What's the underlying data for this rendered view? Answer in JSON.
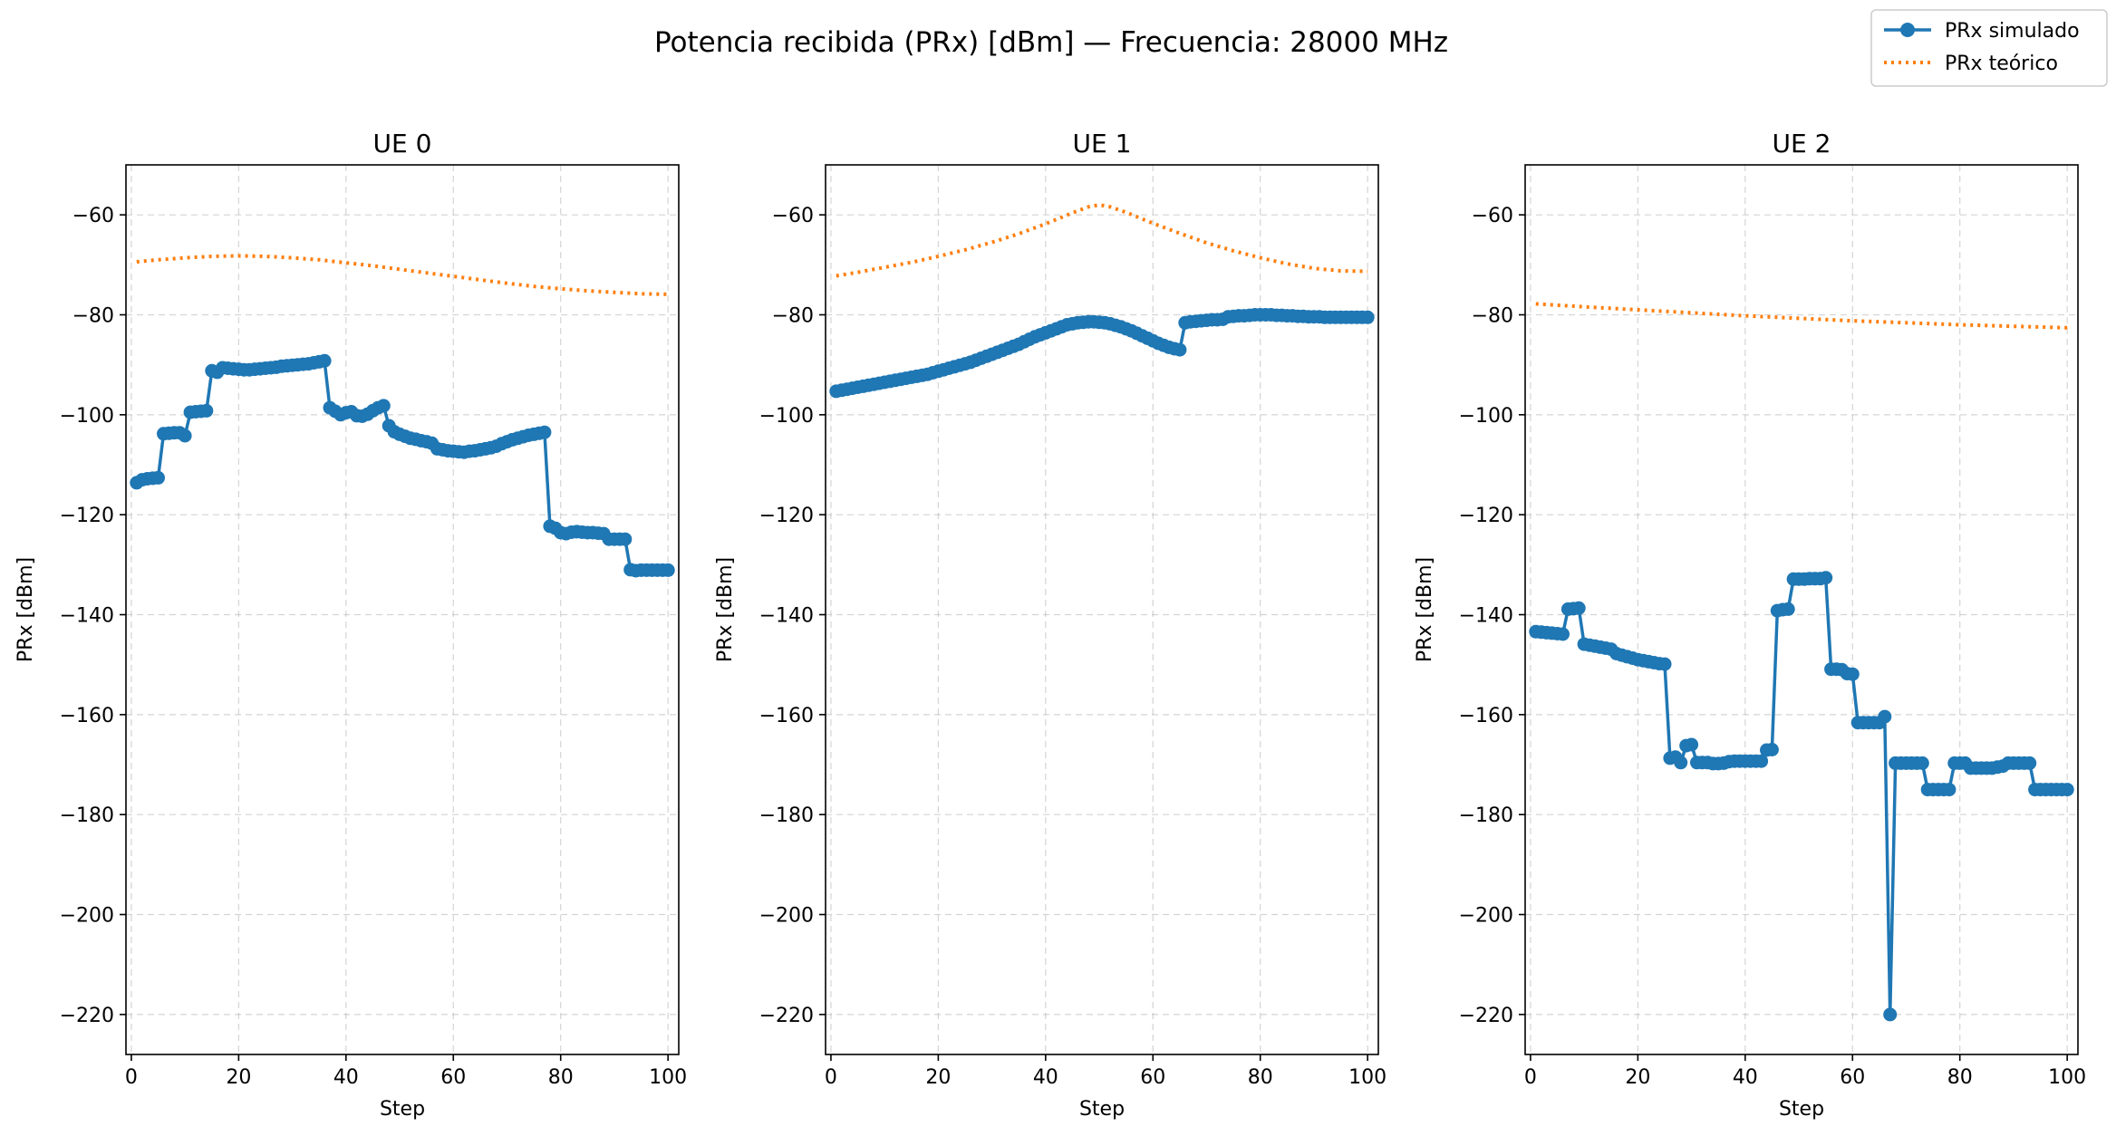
{
  "figure": {
    "suptitle": "Potencia recibida (PRx) [dBm] — Frecuencia: 28000 MHz"
  },
  "legend": {
    "placement": "top-right",
    "entries": [
      {
        "label": "PRx simulado",
        "color": "#1f77b4",
        "style": "solid-marker"
      },
      {
        "label": "PRx teórico",
        "color": "#ff7f0e",
        "style": "dotted"
      }
    ]
  },
  "chart_data": [
    {
      "type": "line",
      "title": "UE 0",
      "xlabel": "Step",
      "ylabel": "PRx [dBm]",
      "xlim": [
        -1,
        102
      ],
      "ylim": [
        -228,
        -50
      ],
      "xticks": [
        0,
        20,
        40,
        60,
        80,
        100
      ],
      "yticks": [
        -60,
        -80,
        -100,
        -120,
        -140,
        -160,
        -180,
        -200,
        -220
      ],
      "grid": true,
      "series": [
        {
          "name": "PRx simulado",
          "color": "#1f77b4",
          "style": "solid-marker",
          "x": [
            1,
            2,
            3,
            4,
            5,
            6,
            7,
            8,
            9,
            10,
            11,
            12,
            13,
            14,
            15,
            16,
            17,
            18,
            19,
            20,
            21,
            22,
            23,
            24,
            25,
            26,
            27,
            28,
            29,
            30,
            31,
            32,
            33,
            34,
            35,
            36,
            37,
            38,
            39,
            40,
            41,
            42,
            43,
            44,
            45,
            46,
            47,
            48,
            49,
            50,
            51,
            52,
            53,
            54,
            55,
            56,
            57,
            58,
            59,
            60,
            61,
            62,
            63,
            64,
            65,
            66,
            67,
            68,
            69,
            70,
            71,
            72,
            73,
            74,
            75,
            76,
            77,
            78,
            79,
            80,
            81,
            82,
            83,
            84,
            85,
            86,
            87,
            88,
            89,
            90,
            91,
            92,
            93,
            94,
            95,
            96,
            97,
            98,
            99,
            100
          ],
          "y": [
            -113.6,
            -113.0,
            -112.8,
            -112.7,
            -112.6,
            -103.8,
            -103.7,
            -103.6,
            -103.6,
            -104.2,
            -99.5,
            -99.4,
            -99.3,
            -99.2,
            -91.2,
            -91.5,
            -90.6,
            -90.7,
            -90.8,
            -90.9,
            -91.0,
            -91.0,
            -90.9,
            -90.8,
            -90.7,
            -90.6,
            -90.5,
            -90.3,
            -90.2,
            -90.1,
            -90.0,
            -89.9,
            -89.8,
            -89.6,
            -89.4,
            -89.2,
            -98.6,
            -99.3,
            -100.0,
            -99.6,
            -99.4,
            -100.2,
            -100.3,
            -99.9,
            -99.2,
            -98.6,
            -98.2,
            -102.2,
            -103.4,
            -103.9,
            -104.3,
            -104.7,
            -104.9,
            -105.2,
            -105.4,
            -105.7,
            -106.8,
            -107.0,
            -107.2,
            -107.3,
            -107.4,
            -107.5,
            -107.3,
            -107.2,
            -107.0,
            -106.8,
            -106.6,
            -106.3,
            -105.8,
            -105.4,
            -105.0,
            -104.7,
            -104.4,
            -104.1,
            -103.9,
            -103.7,
            -103.5,
            -122.3,
            -122.7,
            -123.6,
            -123.8,
            -123.5,
            -123.4,
            -123.5,
            -123.6,
            -123.6,
            -123.7,
            -123.8,
            -124.9,
            -124.9,
            -124.9,
            -124.9,
            -131.0,
            -131.2,
            -131.1,
            -131.1,
            -131.1,
            -131.1,
            -131.1,
            -131.1
          ]
        },
        {
          "name": "PRx teórico",
          "color": "#ff7f0e",
          "style": "dotted",
          "x": [
            1,
            5,
            10,
            15,
            20,
            25,
            30,
            35,
            40,
            45,
            50,
            55,
            60,
            65,
            70,
            75,
            80,
            85,
            90,
            95,
            100
          ],
          "y": [
            -69.4,
            -69.0,
            -68.6,
            -68.3,
            -68.2,
            -68.3,
            -68.6,
            -69.0,
            -69.6,
            -70.2,
            -70.9,
            -71.6,
            -72.3,
            -73.0,
            -73.7,
            -74.3,
            -74.8,
            -75.2,
            -75.5,
            -75.8,
            -75.9
          ]
        }
      ]
    },
    {
      "type": "line",
      "title": "UE 1",
      "xlabel": "Step",
      "ylabel": "PRx [dBm]",
      "xlim": [
        -1,
        102
      ],
      "ylim": [
        -228,
        -50
      ],
      "xticks": [
        0,
        20,
        40,
        60,
        80,
        100
      ],
      "yticks": [
        -60,
        -80,
        -100,
        -120,
        -140,
        -160,
        -180,
        -200,
        -220
      ],
      "grid": true,
      "series": [
        {
          "name": "PRx simulado",
          "color": "#1f77b4",
          "style": "solid-marker",
          "x": [
            1,
            2,
            3,
            4,
            5,
            6,
            7,
            8,
            9,
            10,
            11,
            12,
            13,
            14,
            15,
            16,
            17,
            18,
            19,
            20,
            21,
            22,
            23,
            24,
            25,
            26,
            27,
            28,
            29,
            30,
            31,
            32,
            33,
            34,
            35,
            36,
            37,
            38,
            39,
            40,
            41,
            42,
            43,
            44,
            45,
            46,
            47,
            48,
            49,
            50,
            51,
            52,
            53,
            54,
            55,
            56,
            57,
            58,
            59,
            60,
            61,
            62,
            63,
            64,
            65,
            66,
            67,
            68,
            69,
            70,
            71,
            72,
            73,
            74,
            75,
            76,
            77,
            78,
            79,
            80,
            81,
            82,
            83,
            84,
            85,
            86,
            87,
            88,
            89,
            90,
            91,
            92,
            93,
            94,
            95,
            96,
            97,
            98,
            99,
            100
          ],
          "y": [
            -95.3,
            -95.1,
            -94.9,
            -94.7,
            -94.5,
            -94.3,
            -94.1,
            -93.9,
            -93.7,
            -93.5,
            -93.3,
            -93.1,
            -92.9,
            -92.7,
            -92.5,
            -92.3,
            -92.1,
            -91.9,
            -91.6,
            -91.3,
            -91.0,
            -90.7,
            -90.4,
            -90.1,
            -89.8,
            -89.5,
            -89.1,
            -88.7,
            -88.3,
            -87.9,
            -87.5,
            -87.1,
            -86.7,
            -86.3,
            -85.9,
            -85.4,
            -84.9,
            -84.4,
            -84.0,
            -83.6,
            -83.2,
            -82.8,
            -82.4,
            -82.0,
            -81.8,
            -81.6,
            -81.5,
            -81.4,
            -81.4,
            -81.5,
            -81.6,
            -81.8,
            -82.1,
            -82.4,
            -82.8,
            -83.2,
            -83.7,
            -84.2,
            -84.7,
            -85.2,
            -85.7,
            -86.1,
            -86.5,
            -86.8,
            -87.0,
            -81.6,
            -81.4,
            -81.3,
            -81.2,
            -81.1,
            -81.0,
            -81.0,
            -80.9,
            -80.4,
            -80.3,
            -80.2,
            -80.2,
            -80.1,
            -80.0,
            -80.0,
            -80.0,
            -80.0,
            -80.1,
            -80.1,
            -80.2,
            -80.2,
            -80.3,
            -80.3,
            -80.4,
            -80.4,
            -80.4,
            -80.5,
            -80.5,
            -80.5,
            -80.5,
            -80.5,
            -80.5,
            -80.5,
            -80.5,
            -80.5
          ]
        },
        {
          "name": "PRx teórico",
          "color": "#ff7f0e",
          "style": "dotted",
          "x": [
            1,
            5,
            10,
            15,
            20,
            25,
            30,
            35,
            40,
            45,
            48,
            50,
            52,
            55,
            60,
            65,
            70,
            75,
            80,
            85,
            90,
            95,
            100
          ],
          "y": [
            -72.2,
            -71.5,
            -70.5,
            -69.5,
            -68.3,
            -67.0,
            -65.5,
            -63.8,
            -61.8,
            -59.6,
            -58.4,
            -58.0,
            -58.4,
            -59.5,
            -61.7,
            -63.7,
            -65.6,
            -67.2,
            -68.6,
            -69.8,
            -70.7,
            -71.2,
            -71.3
          ]
        }
      ]
    },
    {
      "type": "line",
      "title": "UE 2",
      "xlabel": "Step",
      "ylabel": "PRx [dBm]",
      "xlim": [
        -1,
        102
      ],
      "ylim": [
        -228,
        -50
      ],
      "xticks": [
        0,
        20,
        40,
        60,
        80,
        100
      ],
      "yticks": [
        -60,
        -80,
        -100,
        -120,
        -140,
        -160,
        -180,
        -200,
        -220
      ],
      "grid": true,
      "series": [
        {
          "name": "PRx simulado",
          "color": "#1f77b4",
          "style": "solid-marker",
          "x": [
            1,
            2,
            3,
            4,
            5,
            6,
            7,
            8,
            9,
            10,
            11,
            12,
            13,
            14,
            15,
            16,
            17,
            18,
            19,
            20,
            21,
            22,
            23,
            24,
            25,
            26,
            27,
            28,
            29,
            30,
            31,
            32,
            33,
            34,
            35,
            36,
            37,
            38,
            39,
            40,
            41,
            42,
            43,
            44,
            45,
            46,
            47,
            48,
            49,
            50,
            51,
            52,
            53,
            54,
            55,
            56,
            57,
            58,
            59,
            60,
            61,
            62,
            63,
            64,
            65,
            66,
            67,
            68,
            69,
            70,
            71,
            72,
            73,
            74,
            75,
            76,
            77,
            78,
            79,
            80,
            81,
            82,
            83,
            84,
            85,
            86,
            87,
            88,
            89,
            90,
            91,
            92,
            93,
            94,
            95,
            96,
            97,
            98,
            99,
            100
          ],
          "y": [
            -143.4,
            -143.5,
            -143.6,
            -143.7,
            -143.8,
            -143.9,
            -138.9,
            -138.8,
            -138.7,
            -145.9,
            -146.1,
            -146.3,
            -146.5,
            -146.7,
            -146.9,
            -147.8,
            -148.1,
            -148.4,
            -148.7,
            -149.0,
            -149.2,
            -149.4,
            -149.6,
            -149.8,
            -149.9,
            -168.7,
            -168.5,
            -169.6,
            -166.2,
            -166.0,
            -169.6,
            -169.6,
            -169.6,
            -169.8,
            -169.8,
            -169.7,
            -169.4,
            -169.3,
            -169.3,
            -169.3,
            -169.3,
            -169.3,
            -169.3,
            -167.1,
            -167.0,
            -139.2,
            -139.0,
            -138.9,
            -132.9,
            -132.9,
            -132.9,
            -132.8,
            -132.8,
            -132.8,
            -132.6,
            -150.9,
            -150.9,
            -151.0,
            -151.8,
            -151.9,
            -161.6,
            -161.6,
            -161.6,
            -161.6,
            -161.6,
            -160.4,
            -220.0,
            -169.7,
            -169.7,
            -169.7,
            -169.7,
            -169.7,
            -169.7,
            -175.0,
            -175.0,
            -175.0,
            -175.0,
            -175.0,
            -169.7,
            -169.7,
            -169.7,
            -170.7,
            -170.7,
            -170.7,
            -170.7,
            -170.7,
            -170.5,
            -170.3,
            -169.7,
            -169.7,
            -169.7,
            -169.7,
            -169.7,
            -175.0,
            -175.0,
            -175.0,
            -175.0,
            -175.0,
            -175.0,
            -175.0
          ]
        },
        {
          "name": "PRx teórico",
          "color": "#ff7f0e",
          "style": "dotted",
          "x": [
            1,
            10,
            20,
            30,
            40,
            50,
            60,
            70,
            80,
            90,
            100
          ],
          "y": [
            -77.8,
            -78.4,
            -79.0,
            -79.6,
            -80.2,
            -80.7,
            -81.2,
            -81.6,
            -82.0,
            -82.3,
            -82.6
          ]
        }
      ]
    }
  ]
}
